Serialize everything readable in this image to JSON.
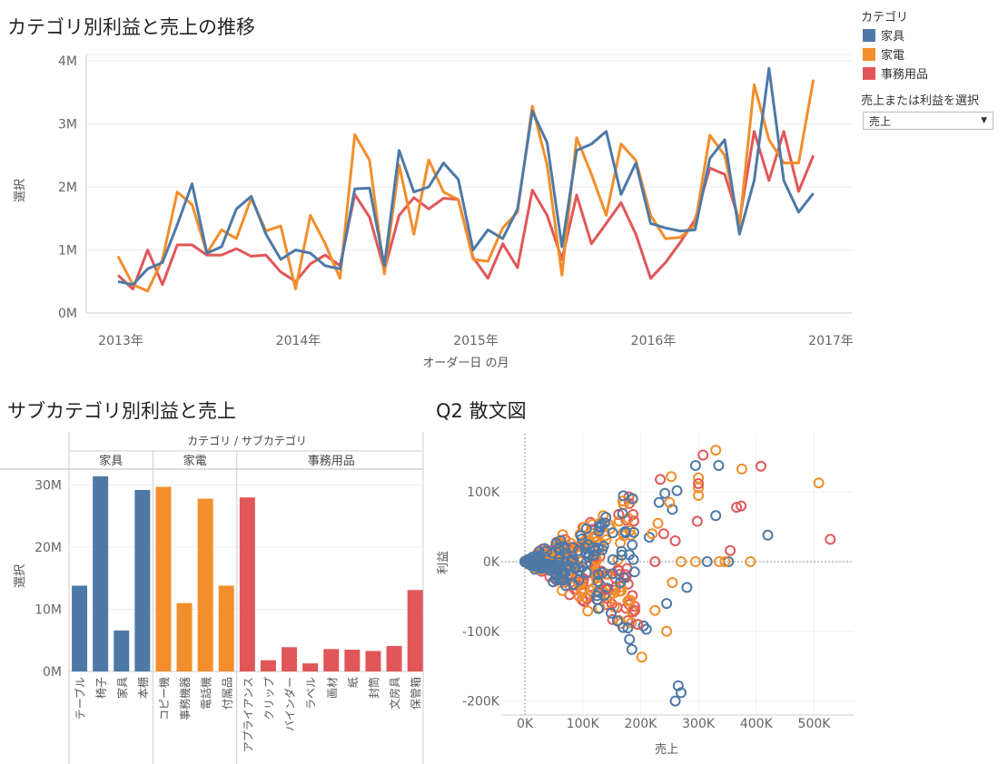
{
  "charts": {
    "line": {
      "title": "カテゴリ別利益と売上の推移",
      "ylabel": "選択",
      "xlabel": "オーダー日 の月",
      "yticks": [
        "0M",
        "1M",
        "2M",
        "3M",
        "4M"
      ],
      "xticks": [
        "2013年",
        "2014年",
        "2015年",
        "2016年",
        "2017年"
      ]
    },
    "bar": {
      "title": "サブカテゴリ別利益と売上",
      "header": "カテゴリ / サブカテゴリ",
      "ylabel": "選択",
      "yticks": [
        "0M",
        "10M",
        "20M",
        "30M"
      ],
      "groups": [
        "家具",
        "家電",
        "事務用品"
      ]
    },
    "scatter": {
      "title": "Q2 散文図",
      "xlabel": "売上",
      "ylabel": "利益",
      "xticks": [
        "0K",
        "100K",
        "200K",
        "300K",
        "400K",
        "500K"
      ],
      "yticks": [
        "100K",
        "0K",
        "-100K",
        "-200K"
      ]
    }
  },
  "legend": {
    "title": "カテゴリ",
    "items": [
      {
        "label": "家具",
        "color": "#4e79a7"
      },
      {
        "label": "家電",
        "color": "#f28e2b"
      },
      {
        "label": "事務用品",
        "color": "#e15759"
      }
    ]
  },
  "parameter": {
    "label": "売上または利益を選択",
    "value": "売上"
  },
  "chart_data": [
    {
      "type": "line",
      "title": "カテゴリ別利益と売上の推移",
      "xlabel": "オーダー日 の月",
      "ylabel": "選択",
      "x_start": "2013-01",
      "ylim": [
        0,
        4.2
      ],
      "unit": "M",
      "series": [
        {
          "name": "家具",
          "color": "#4e79a7",
          "values": [
            0.5,
            0.45,
            0.7,
            0.8,
            1.4,
            2.05,
            0.95,
            1.05,
            1.65,
            1.85,
            1.25,
            0.85,
            1.0,
            0.95,
            0.75,
            0.7,
            1.97,
            1.98,
            0.75,
            2.58,
            1.92,
            2.0,
            2.38,
            2.12,
            1.0,
            1.32,
            1.18,
            1.65,
            3.2,
            2.7,
            1.05,
            2.58,
            2.68,
            2.88,
            1.88,
            2.38,
            1.42,
            1.35,
            1.3,
            1.32,
            2.45,
            2.75,
            1.25,
            2.1,
            3.88,
            2.1,
            1.6,
            1.9
          ]
        },
        {
          "name": "家電",
          "color": "#f28e2b",
          "values": [
            0.9,
            0.45,
            0.35,
            0.85,
            1.92,
            1.72,
            0.95,
            1.32,
            1.18,
            1.82,
            1.3,
            1.38,
            0.38,
            1.55,
            1.1,
            0.55,
            2.83,
            2.42,
            0.62,
            2.35,
            1.25,
            2.43,
            1.92,
            1.8,
            0.85,
            0.82,
            1.35,
            1.6,
            3.28,
            2.35,
            0.6,
            2.78,
            2.2,
            1.55,
            2.68,
            2.42,
            1.55,
            1.18,
            1.2,
            1.4,
            2.82,
            2.5,
            1.38,
            3.62,
            2.75,
            2.38,
            2.38,
            3.7
          ]
        },
        {
          "name": "事務用品",
          "color": "#e15759",
          "values": [
            0.6,
            0.38,
            1.0,
            0.45,
            1.08,
            1.08,
            0.92,
            0.92,
            1.02,
            0.9,
            0.92,
            0.65,
            0.5,
            0.78,
            0.92,
            0.75,
            1.88,
            1.52,
            0.68,
            1.55,
            1.83,
            1.65,
            1.82,
            1.8,
            0.88,
            0.55,
            1.1,
            0.72,
            1.95,
            1.55,
            0.85,
            1.87,
            1.1,
            1.42,
            1.75,
            1.25,
            0.55,
            0.8,
            1.12,
            1.48,
            2.3,
            2.2,
            1.45,
            2.88,
            2.1,
            2.88,
            1.93,
            2.5
          ]
        }
      ]
    },
    {
      "type": "bar",
      "title": "サブカテゴリ別利益と売上",
      "ylabel": "選択",
      "ylim": [
        0,
        34
      ],
      "unit": "M",
      "groups": [
        {
          "name": "家具",
          "color": "#4e79a7",
          "categories": [
            "テーブル",
            "椅子",
            "家具",
            "本棚"
          ],
          "values": [
            13.8,
            31.4,
            6.6,
            29.2
          ]
        },
        {
          "name": "家電",
          "color": "#f28e2b",
          "categories": [
            "コピー機",
            "事務機器",
            "電話機",
            "付属品"
          ],
          "values": [
            29.7,
            11.0,
            27.8,
            13.8
          ]
        },
        {
          "name": "事務用品",
          "color": "#e15759",
          "categories": [
            "アプライアンス",
            "クリップ",
            "バインダー",
            "ラベル",
            "画材",
            "紙",
            "封筒",
            "文房具",
            "保管箱"
          ],
          "values": [
            28.0,
            1.8,
            3.9,
            1.3,
            3.6,
            3.5,
            3.3,
            4.1,
            13.1
          ]
        }
      ]
    },
    {
      "type": "scatter",
      "title": "Q2 散文図",
      "xlabel": "売上",
      "ylabel": "利益",
      "unit": "K",
      "xlim": [
        -30,
        560
      ],
      "ylim": [
        -215,
        165
      ],
      "points": [
        {
          "s": "家具",
          "x": 242,
          "y": 98
        },
        {
          "s": "家具",
          "x": 263,
          "y": 102
        },
        {
          "s": "家具",
          "x": 295,
          "y": 138
        },
        {
          "s": "家具",
          "x": 335,
          "y": 138
        },
        {
          "s": "家具",
          "x": 330,
          "y": 66
        },
        {
          "s": "家具",
          "x": 420,
          "y": 38
        },
        {
          "s": "家具",
          "x": 260,
          "y": -200
        },
        {
          "s": "家具",
          "x": 270,
          "y": -188
        },
        {
          "s": "家具",
          "x": 265,
          "y": -178
        },
        {
          "s": "家具",
          "x": 185,
          "y": -126
        },
        {
          "s": "家具",
          "x": 205,
          "y": -92
        },
        {
          "s": "家具",
          "x": 210,
          "y": -97
        },
        {
          "s": "家具",
          "x": 178,
          "y": -95
        },
        {
          "s": "家具",
          "x": 245,
          "y": -60
        },
        {
          "s": "家具",
          "x": 280,
          "y": -37
        },
        {
          "s": "家具",
          "x": 315,
          "y": 0
        },
        {
          "s": "家具",
          "x": 352,
          "y": 0
        },
        {
          "s": "家具",
          "x": 255,
          "y": 75
        },
        {
          "s": "家具",
          "x": 232,
          "y": 85
        },
        {
          "s": "家具",
          "x": 215,
          "y": 35
        },
        {
          "s": "家具",
          "x": 160,
          "y": -85
        },
        {
          "s": "家電",
          "x": 330,
          "y": 160
        },
        {
          "s": "家電",
          "x": 300,
          "y": 120
        },
        {
          "s": "家電",
          "x": 253,
          "y": 122
        },
        {
          "s": "家電",
          "x": 375,
          "y": 133
        },
        {
          "s": "家電",
          "x": 508,
          "y": 113
        },
        {
          "s": "家電",
          "x": 300,
          "y": 106
        },
        {
          "s": "家電",
          "x": 300,
          "y": 95
        },
        {
          "s": "家電",
          "x": 250,
          "y": 85
        },
        {
          "s": "家電",
          "x": 295,
          "y": 0
        },
        {
          "s": "家電",
          "x": 336,
          "y": 0
        },
        {
          "s": "家電",
          "x": 346,
          "y": 0
        },
        {
          "s": "家電",
          "x": 390,
          "y": 0
        },
        {
          "s": "家電",
          "x": 270,
          "y": 0
        },
        {
          "s": "家電",
          "x": 202,
          "y": -137
        },
        {
          "s": "家電",
          "x": 245,
          "y": -100
        },
        {
          "s": "家電",
          "x": 225,
          "y": -70
        },
        {
          "s": "家電",
          "x": 180,
          "y": -55
        },
        {
          "s": "家電",
          "x": 255,
          "y": -30
        },
        {
          "s": "家電",
          "x": 220,
          "y": 40
        },
        {
          "s": "家電",
          "x": 230,
          "y": 55
        },
        {
          "s": "事務用品",
          "x": 308,
          "y": 153
        },
        {
          "s": "事務用品",
          "x": 408,
          "y": 137
        },
        {
          "s": "事務用品",
          "x": 234,
          "y": 118
        },
        {
          "s": "事務用品",
          "x": 300,
          "y": 112
        },
        {
          "s": "事務用品",
          "x": 366,
          "y": 78
        },
        {
          "s": "事務用品",
          "x": 374,
          "y": 80
        },
        {
          "s": "事務用品",
          "x": 298,
          "y": 58
        },
        {
          "s": "事務用品",
          "x": 528,
          "y": 32
        },
        {
          "s": "事務用品",
          "x": 355,
          "y": 16
        },
        {
          "s": "事務用品",
          "x": 190,
          "y": -70
        },
        {
          "s": "事務用品",
          "x": 195,
          "y": -90
        },
        {
          "s": "事務用品",
          "x": 140,
          "y": -40
        },
        {
          "s": "事務用品",
          "x": 240,
          "y": 40
        },
        {
          "s": "事務用品",
          "x": 225,
          "y": 0
        },
        {
          "s": "事務用品",
          "x": 260,
          "y": 30
        }
      ]
    }
  ]
}
